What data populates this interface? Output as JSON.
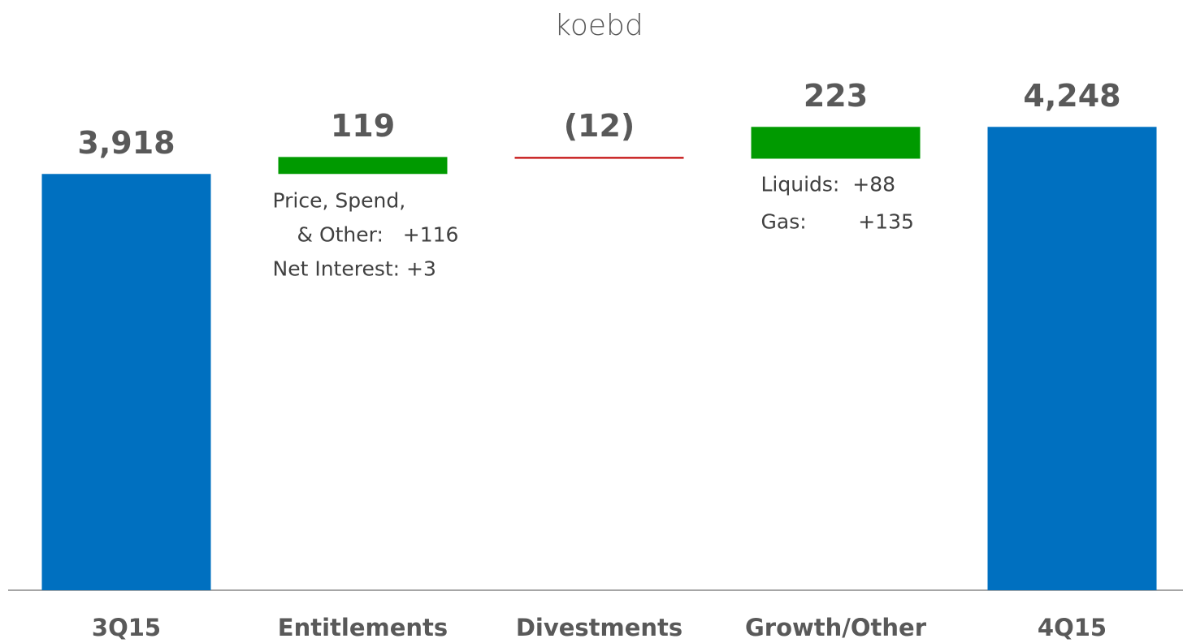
{
  "chart_data": {
    "type": "waterfall",
    "title": "koebd",
    "categories": [
      "3Q15",
      "Entitlements",
      "Divestments",
      "Growth/Other",
      "4Q15"
    ],
    "values": [
      3918,
      119,
      -12,
      223,
      4248
    ],
    "value_labels": [
      "3,918",
      "119",
      "(12)",
      "223",
      "4,248"
    ],
    "bar_kinds": [
      "total",
      "delta",
      "delta",
      "delta",
      "total"
    ],
    "colors": {
      "total": "#0070c0",
      "increase": "#009a00",
      "decrease": "#c00000"
    },
    "ylim": [
      1000,
      4500
    ],
    "annotations": [
      {
        "category": "Entitlements",
        "lines": [
          "Price, Spend,",
          "& Other:   +116",
          "Net Interest: +3"
        ]
      },
      {
        "category": "Growth/Other",
        "lines": [
          "Liquids:  +88",
          "Gas:        +135"
        ]
      }
    ]
  }
}
